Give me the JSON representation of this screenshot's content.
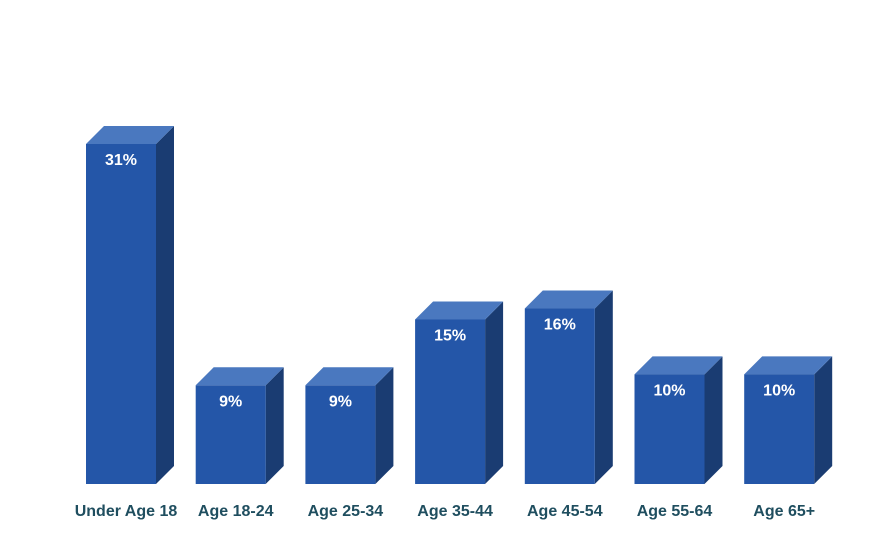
{
  "chart_data": {
    "type": "bar",
    "title": "",
    "xlabel": "",
    "ylabel": "",
    "categories": [
      "Under Age 18",
      "Age 18-24",
      "Age 25-34",
      "Age 35-44",
      "Age 45-54",
      "Age 55-64",
      "Age 65+"
    ],
    "values": [
      31,
      9,
      9,
      15,
      16,
      10,
      10
    ],
    "value_labels": [
      "31%",
      "9%",
      "9%",
      "15%",
      "16%",
      "10%",
      "10%"
    ],
    "unit": "%",
    "ylim": [
      0,
      31
    ],
    "grid": false,
    "legend": "none",
    "bar_style": "3d",
    "colors": {
      "front": "#2456A8",
      "top": "#4A78BF",
      "side": "#1A3C72",
      "value_label": "#ffffff",
      "category_label": "#1F4E5F"
    }
  }
}
